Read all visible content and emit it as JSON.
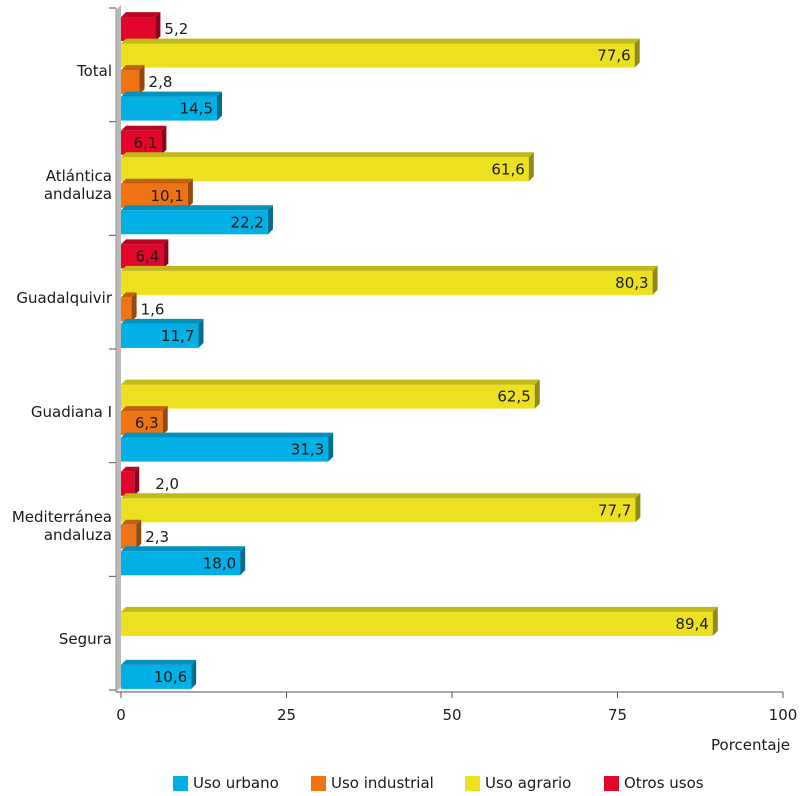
{
  "chart_data": {
    "type": "bar",
    "orientation": "horizontal",
    "categories": [
      "Total",
      "Atlántica\nandaluza",
      "Guadalquivir",
      "Guadiana I",
      "Mediterránea\nandaluza",
      "Segura"
    ],
    "series": [
      {
        "name": "Otros usos",
        "color": "#e2062b",
        "values": [
          5.2,
          6.1,
          6.4,
          null,
          2.0,
          null
        ],
        "labels": [
          "5,2",
          "6,1",
          "6,4",
          null,
          "2,0",
          null
        ]
      },
      {
        "name": "Uso agrario",
        "color": "#ece01f",
        "values": [
          77.6,
          61.6,
          80.3,
          62.5,
          77.7,
          89.4
        ],
        "labels": [
          "77,6",
          "61,6",
          "80,3",
          "62,5",
          "77,7",
          "89,4"
        ]
      },
      {
        "name": "Uso industrial",
        "color": "#ee7413",
        "values": [
          2.8,
          10.1,
          1.6,
          6.3,
          2.3,
          null
        ],
        "labels": [
          "2,8",
          "10,1",
          "1,6",
          "6,3",
          "2,3",
          null
        ]
      },
      {
        "name": "Uso urbano",
        "color": "#03b0e6",
        "values": [
          14.5,
          22.2,
          11.7,
          31.3,
          18.0,
          10.6
        ],
        "labels": [
          "14,5",
          "22,2",
          "11,7",
          "31,3",
          "18,0",
          "10,6"
        ]
      }
    ],
    "xlim": [
      0,
      100
    ],
    "xticks": [
      0,
      25,
      50,
      75,
      100
    ],
    "xtick_labels": [
      "0",
      "25",
      "50",
      "75",
      "100"
    ],
    "xlabel": "Porcentaje",
    "legend": {
      "position": "bottom",
      "entries": [
        {
          "name": "Uso urbano",
          "color": "#03b0e6"
        },
        {
          "name": "Uso industrial",
          "color": "#ee7413"
        },
        {
          "name": "Uso agrario",
          "color": "#ece01f"
        },
        {
          "name": "Otros usos",
          "color": "#e2062b"
        }
      ]
    }
  }
}
